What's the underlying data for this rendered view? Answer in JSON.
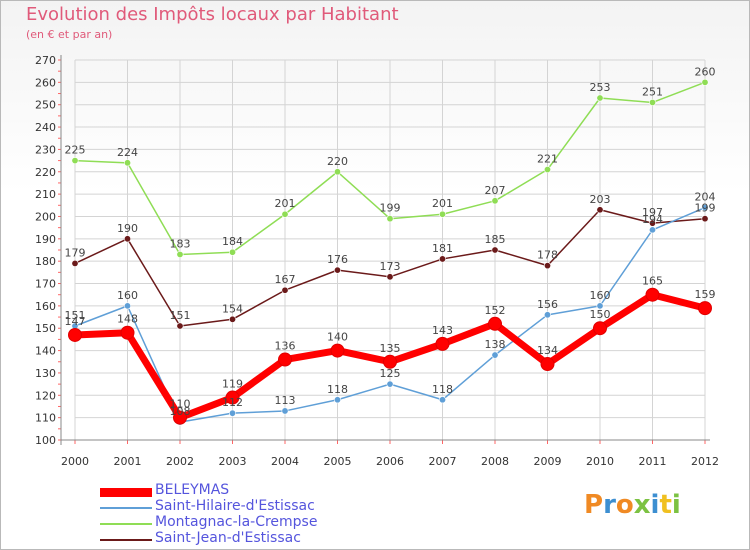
{
  "title": "Evolution des Impôts locaux par Habitant",
  "subtitle": "(en € et par an)",
  "logo": "Proxiti",
  "chart_data": {
    "type": "line",
    "title": "Evolution des Impôts locaux par Habitant",
    "subtitle": "(en € et par an)",
    "x": [
      "2000",
      "2001",
      "2002",
      "2003",
      "2004",
      "2005",
      "2006",
      "2007",
      "2008",
      "2009",
      "2010",
      "2011",
      "2012"
    ],
    "ylim": [
      100,
      270
    ],
    "yticks": [
      100,
      110,
      120,
      130,
      140,
      150,
      160,
      170,
      180,
      190,
      200,
      210,
      220,
      230,
      240,
      250,
      260,
      270
    ],
    "grid": true,
    "legend_position": "bottom-left",
    "series": [
      {
        "name": "BELEYMAS",
        "color": "#ff0000",
        "values": [
          147,
          148,
          110,
          119,
          136,
          140,
          135,
          143,
          152,
          134,
          150,
          165,
          159
        ]
      },
      {
        "name": "Saint-Hilaire-d'Estissac",
        "color": "#5f9fd7",
        "values": [
          151,
          160,
          108,
          112,
          113,
          118,
          125,
          118,
          138,
          156,
          160,
          194,
          204
        ]
      },
      {
        "name": "Montagnac-la-Crempse",
        "color": "#8fdd55",
        "values": [
          225,
          224,
          183,
          184,
          201,
          220,
          199,
          201,
          207,
          221,
          253,
          251,
          260
        ]
      },
      {
        "name": "Saint-Jean-d'Estissac",
        "color": "#6b1a1a",
        "values": [
          179,
          190,
          151,
          154,
          167,
          176,
          173,
          181,
          185,
          178,
          203,
          197,
          199
        ]
      }
    ]
  }
}
